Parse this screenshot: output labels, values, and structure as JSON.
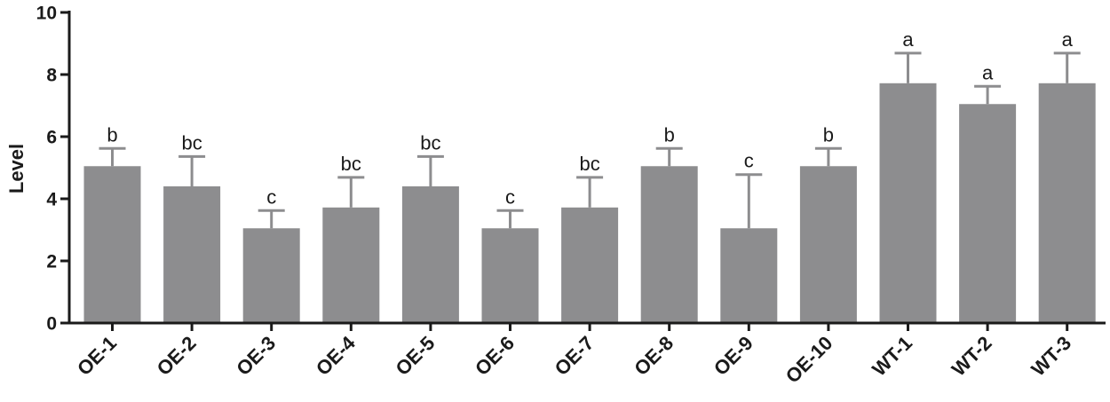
{
  "chart_data": {
    "type": "bar",
    "categories": [
      "OE-1",
      "OE-2",
      "OE-3",
      "OE-4",
      "OE-5",
      "OE-6",
      "OE-7",
      "OE-8",
      "OE-9",
      "OE-10",
      "WT-1",
      "WT-2",
      "WT-3"
    ],
    "values": [
      5.05,
      4.4,
      3.05,
      3.72,
      4.4,
      3.05,
      3.72,
      5.05,
      3.05,
      5.05,
      7.72,
      7.05,
      7.72
    ],
    "error_upper": [
      0.57,
      0.96,
      0.57,
      0.97,
      0.96,
      0.57,
      0.97,
      0.57,
      1.73,
      0.57,
      0.97,
      0.57,
      0.97
    ],
    "significance_labels": [
      "b",
      "bc",
      "c",
      "bc",
      "bc",
      "c",
      "bc",
      "b",
      "c",
      "b",
      "a",
      "a",
      "a"
    ],
    "title": "",
    "xlabel": "",
    "ylabel": "Level",
    "ylim": [
      0,
      10
    ],
    "yticks": [
      0,
      2,
      4,
      6,
      8,
      10
    ],
    "grid": false,
    "legend": "none",
    "bar_color": "#8d8d8f",
    "axis_color": "#1a1a1a"
  }
}
